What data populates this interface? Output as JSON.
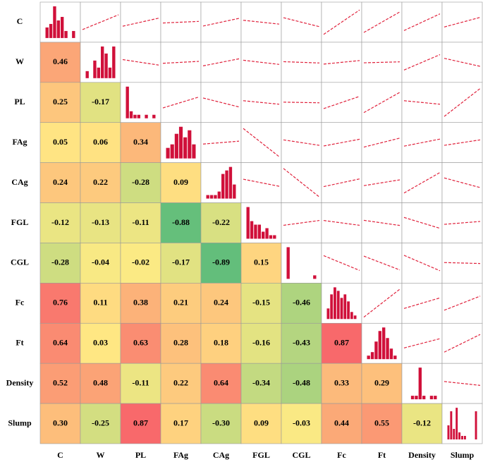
{
  "chart_data": {
    "type": "correlation-matrix",
    "variables": [
      "C",
      "W",
      "PL",
      "FAg",
      "CAg",
      "FGL",
      "CGL",
      "Fc",
      "Ft",
      "Density",
      "Slump"
    ],
    "values": [
      [],
      [
        0.46
      ],
      [
        0.25,
        -0.17
      ],
      [
        0.05,
        0.06,
        0.34
      ],
      [
        0.24,
        0.22,
        -0.28,
        0.09
      ],
      [
        -0.12,
        -0.13,
        -0.11,
        -0.88,
        -0.22
      ],
      [
        -0.28,
        -0.04,
        -0.02,
        -0.17,
        -0.89,
        0.15
      ],
      [
        0.76,
        0.11,
        0.38,
        0.21,
        0.24,
        -0.15,
        -0.46
      ],
      [
        0.64,
        0.03,
        0.63,
        0.28,
        0.18,
        -0.16,
        -0.43,
        0.87
      ],
      [
        0.52,
        0.48,
        -0.11,
        0.22,
        0.64,
        -0.34,
        -0.48,
        0.33,
        0.29
      ],
      [
        0.3,
        -0.25,
        0.87,
        0.17,
        -0.3,
        0.09,
        -0.03,
        0.44,
        0.55,
        -0.12
      ]
    ],
    "value_labels": [
      [],
      [
        "0.46"
      ],
      [
        "0.25",
        "-0.17"
      ],
      [
        "0.05",
        "0.06",
        "0.34"
      ],
      [
        "0.24",
        "0.22",
        "-0.28",
        "0.09"
      ],
      [
        "-0.12",
        "-0.13",
        "-0.11",
        "-0.88",
        "-0.22"
      ],
      [
        "-0.28",
        "-0.04",
        "-0.02",
        "-0.17",
        "-0.89",
        "0.15"
      ],
      [
        "0.76",
        "0.11",
        "0.38",
        "0.21",
        "0.24",
        "-0.15",
        "-0.46"
      ],
      [
        "0.64",
        "0.03",
        "0.63",
        "0.28",
        "0.18",
        "-0.16",
        "-0.43",
        "0.87"
      ],
      [
        "0.52",
        "0.48",
        "-0.11",
        "0.22",
        "0.64",
        "-0.34",
        "-0.48",
        "0.33",
        "0.29"
      ],
      [
        "0.30",
        "-0.25",
        "0.87",
        "0.17",
        "-0.30",
        "0.09",
        "-0.03",
        "0.44",
        "0.55",
        "-0.12"
      ]
    ],
    "histograms": [
      [
        3,
        4,
        9,
        5,
        6,
        2,
        0,
        2
      ],
      [
        2,
        0,
        5,
        3,
        9,
        7,
        3,
        9
      ],
      [
        9,
        2,
        1,
        1,
        0,
        1,
        0,
        1
      ],
      [
        3,
        4,
        7,
        9,
        6,
        8,
        4
      ],
      [
        1,
        1,
        1,
        2,
        7,
        8,
        9,
        4
      ],
      [
        9,
        5,
        4,
        4,
        2,
        3,
        1,
        1
      ],
      [
        9,
        0,
        0,
        0,
        0,
        0,
        0,
        1
      ],
      [
        3,
        7,
        9,
        8,
        6,
        7,
        5,
        2,
        1
      ],
      [
        1,
        2,
        5,
        8,
        9,
        6,
        3,
        1
      ],
      [
        0,
        1,
        1,
        9,
        1,
        0,
        1,
        1
      ],
      [
        4,
        8,
        3,
        9,
        2,
        1,
        1,
        0,
        0,
        0,
        8
      ]
    ],
    "colors": {
      "negative": "#63be7b",
      "zero": "#ffeb84",
      "positive": "#f8696b",
      "histogram": "#d0103a",
      "trend": "#e0223c"
    }
  }
}
